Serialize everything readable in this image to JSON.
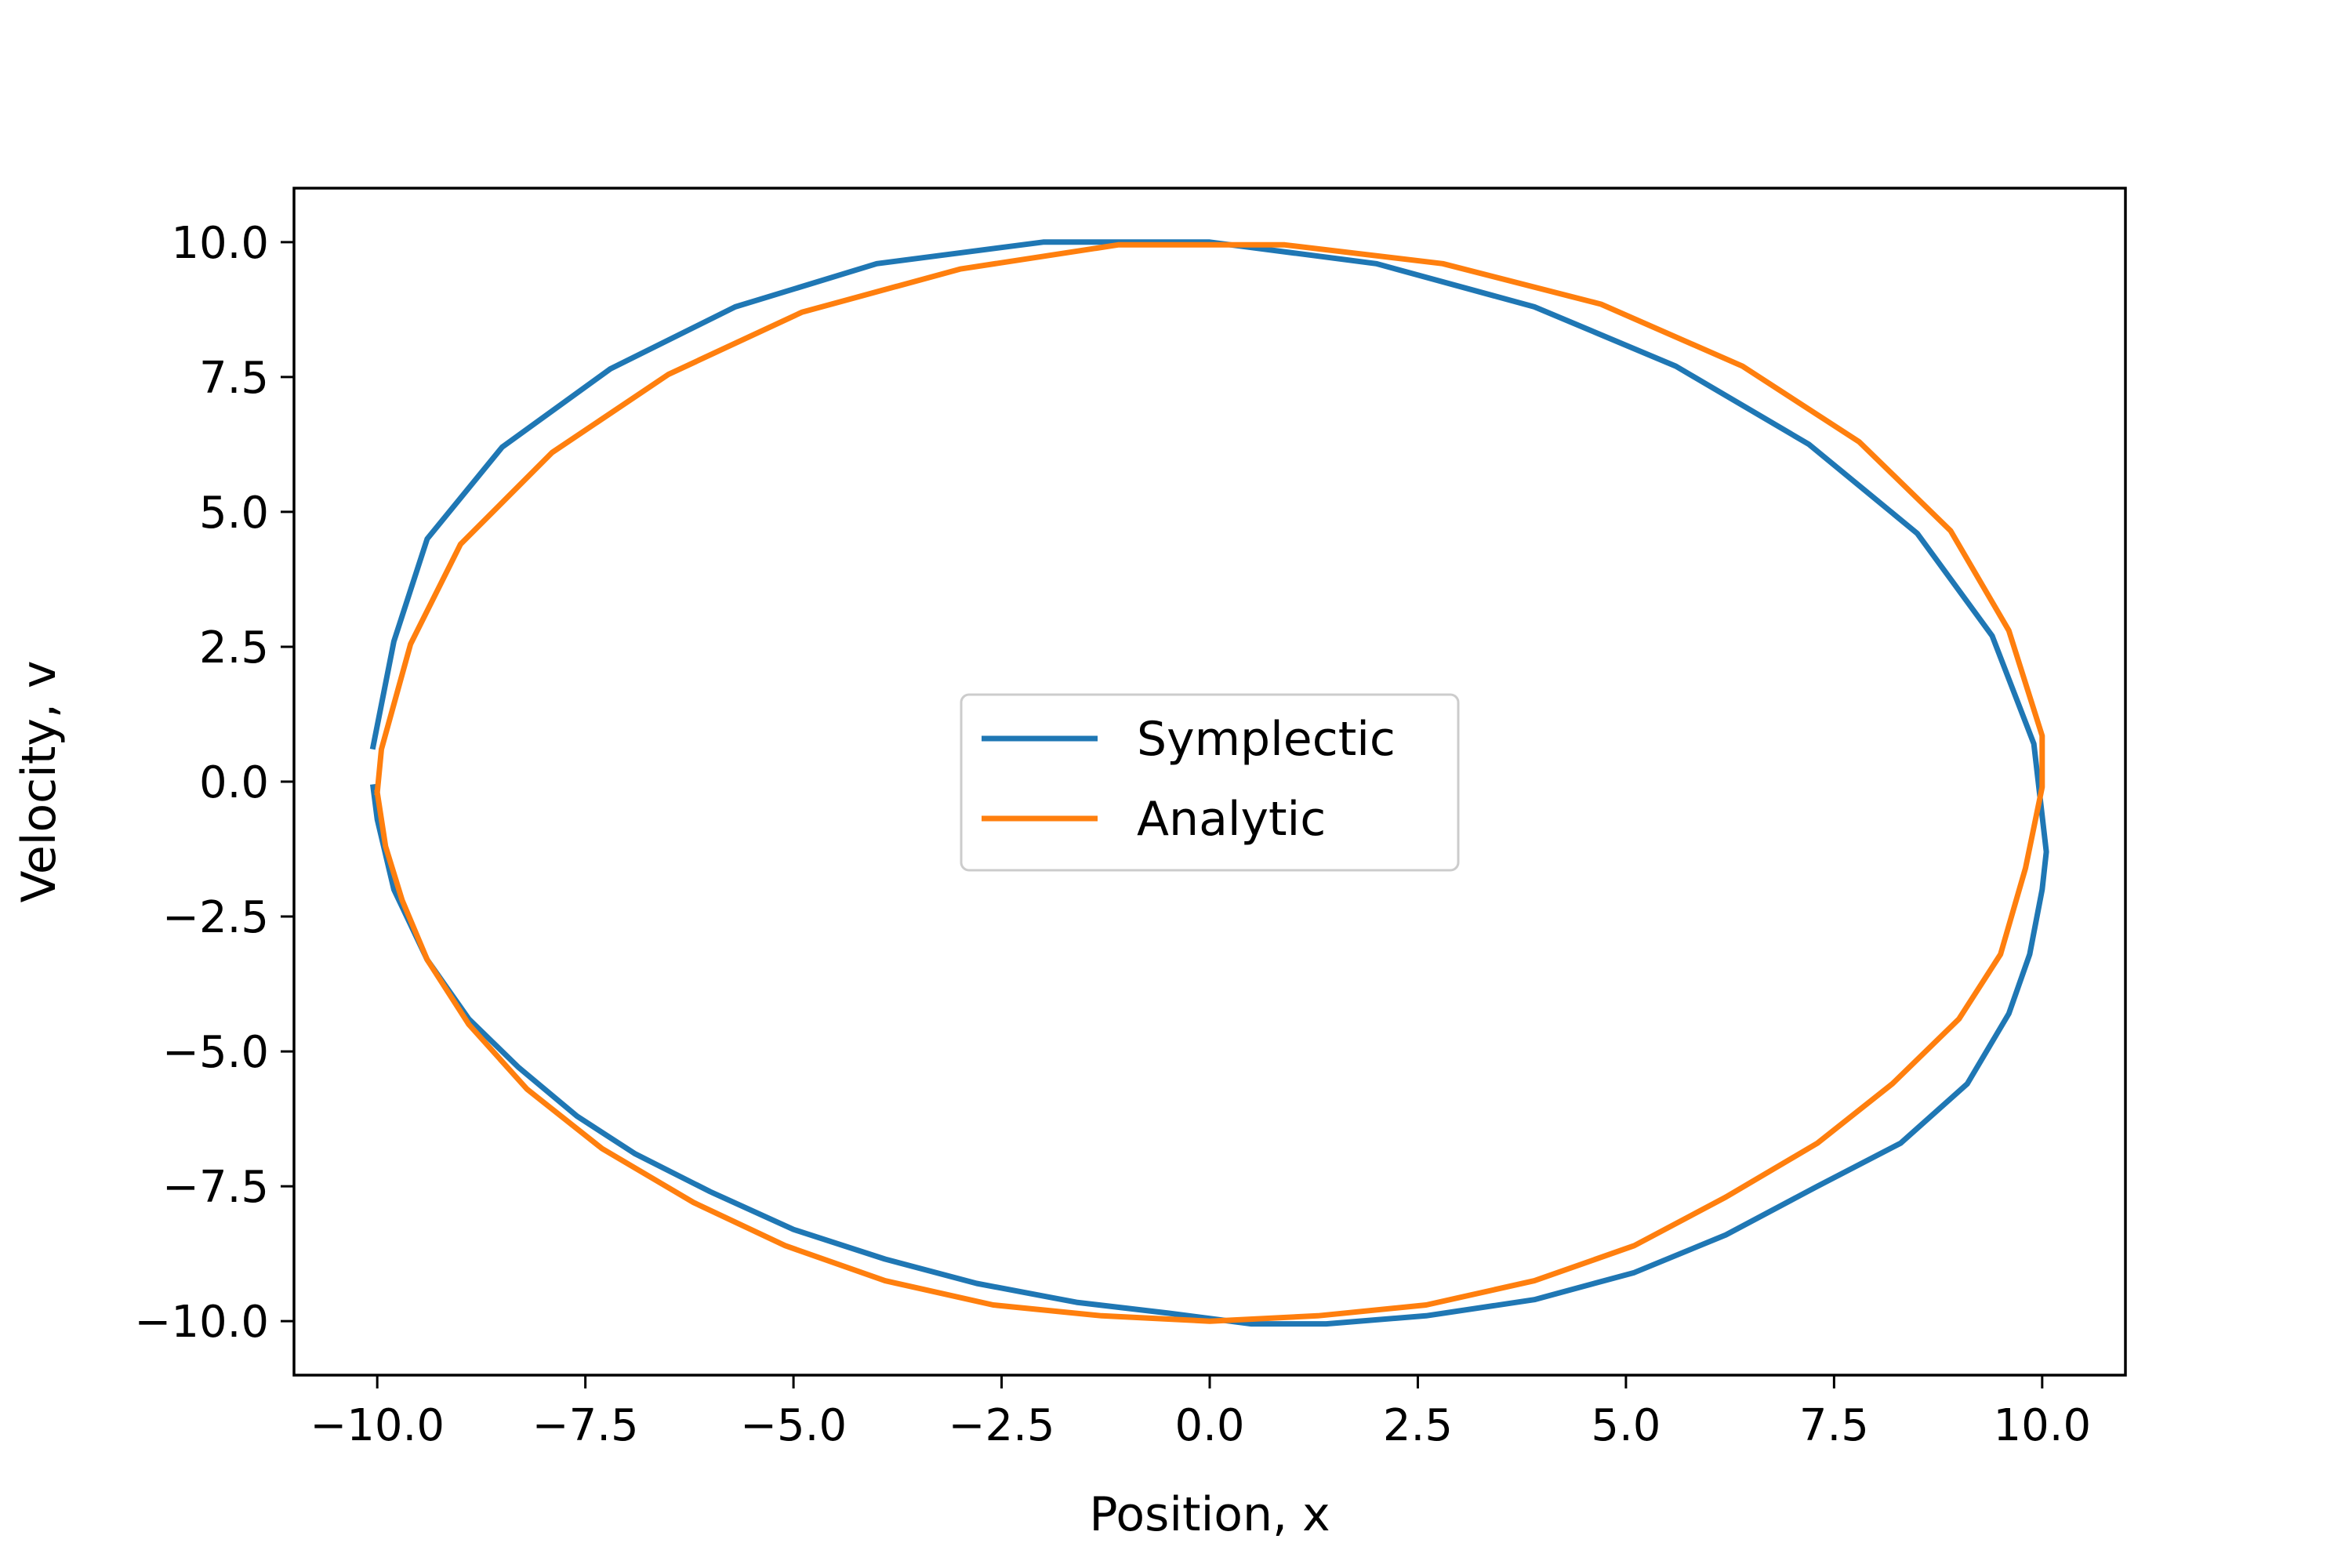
{
  "chart_data": {
    "type": "line",
    "title": "",
    "xlabel": "Position, x",
    "ylabel": "Velocity, v",
    "xlim": [
      -11,
      11
    ],
    "ylim": [
      -11,
      11
    ],
    "grid": false,
    "legend_placement": "center",
    "x_ticks": [
      -10.0,
      -7.5,
      -5.0,
      -2.5,
      0.0,
      2.5,
      5.0,
      7.5,
      10.0
    ],
    "y_ticks": [
      -10.0,
      -7.5,
      -5.0,
      -2.5,
      0.0,
      2.5,
      5.0,
      7.5,
      10.0
    ],
    "x_tick_labels": [
      "−10.0",
      "−7.5",
      "−5.0",
      "−2.5",
      "0.0",
      "2.5",
      "5.0",
      "7.5",
      "10.0"
    ],
    "y_tick_labels": [
      "−10.0",
      "−7.5",
      "−5.0",
      "−2.5",
      "0.0",
      "2.5",
      "5.0",
      "7.5",
      "10.0"
    ],
    "series": [
      {
        "name": "Symplectic",
        "color": "#1f77b4",
        "points": [
          [
            -10.05,
            0.65
          ],
          [
            -9.8,
            2.6
          ],
          [
            -9.4,
            4.5
          ],
          [
            -8.5,
            6.2
          ],
          [
            -7.2,
            7.65
          ],
          [
            -5.7,
            8.8
          ],
          [
            -4.0,
            9.6
          ],
          [
            -2.0,
            10.0
          ],
          [
            0.0,
            10.0
          ],
          [
            2.0,
            9.6
          ],
          [
            3.9,
            8.8
          ],
          [
            5.6,
            7.7
          ],
          [
            7.2,
            6.25
          ],
          [
            8.5,
            4.6
          ],
          [
            9.4,
            2.7
          ],
          [
            9.9,
            0.7
          ],
          [
            10.05,
            -1.3
          ],
          [
            10.0,
            -2.0
          ],
          [
            9.85,
            -3.2
          ],
          [
            9.6,
            -4.3
          ],
          [
            9.1,
            -5.6
          ],
          [
            8.3,
            -6.7
          ],
          [
            7.3,
            -7.5
          ],
          [
            6.2,
            -8.4
          ],
          [
            5.1,
            -9.1
          ],
          [
            3.9,
            -9.6
          ],
          [
            2.6,
            -9.9
          ],
          [
            1.4,
            -10.05
          ],
          [
            0.5,
            -10.05
          ],
          [
            -0.5,
            -9.85
          ],
          [
            -1.6,
            -9.65
          ],
          [
            -2.8,
            -9.3
          ],
          [
            -3.9,
            -8.85
          ],
          [
            -5.0,
            -8.3
          ],
          [
            -6.0,
            -7.6
          ],
          [
            -6.9,
            -6.9
          ],
          [
            -7.6,
            -6.2
          ],
          [
            -8.3,
            -5.3
          ],
          [
            -8.9,
            -4.4
          ],
          [
            -9.4,
            -3.3
          ],
          [
            -9.8,
            -2.0
          ],
          [
            -10.0,
            -0.7
          ],
          [
            -10.05,
            -0.1
          ]
        ]
      },
      {
        "name": "Analytic",
        "color": "#ff7f0e",
        "points": [
          [
            -10.0,
            -0.2
          ],
          [
            -9.95,
            0.6
          ],
          [
            -9.6,
            2.55
          ],
          [
            -9.0,
            4.4
          ],
          [
            -7.9,
            6.1
          ],
          [
            -6.5,
            7.55
          ],
          [
            -4.9,
            8.7
          ],
          [
            -3.0,
            9.5
          ],
          [
            -1.1,
            9.95
          ],
          [
            0.9,
            9.95
          ],
          [
            2.8,
            9.6
          ],
          [
            4.7,
            8.85
          ],
          [
            6.4,
            7.7
          ],
          [
            7.8,
            6.3
          ],
          [
            8.9,
            4.65
          ],
          [
            9.6,
            2.8
          ],
          [
            10.0,
            0.85
          ],
          [
            10.0,
            -0.1
          ],
          [
            9.8,
            -1.6
          ],
          [
            9.5,
            -3.2
          ],
          [
            9.0,
            -4.4
          ],
          [
            8.2,
            -5.6
          ],
          [
            7.3,
            -6.7
          ],
          [
            6.2,
            -7.7
          ],
          [
            5.1,
            -8.6
          ],
          [
            3.9,
            -9.25
          ],
          [
            2.6,
            -9.7
          ],
          [
            1.3,
            -9.9
          ],
          [
            0.0,
            -10.0
          ],
          [
            -1.3,
            -9.9
          ],
          [
            -2.6,
            -9.7
          ],
          [
            -3.9,
            -9.25
          ],
          [
            -5.1,
            -8.6
          ],
          [
            -6.2,
            -7.8
          ],
          [
            -7.3,
            -6.8
          ],
          [
            -8.2,
            -5.7
          ],
          [
            -8.9,
            -4.5
          ],
          [
            -9.4,
            -3.3
          ],
          [
            -9.7,
            -2.2
          ],
          [
            -9.9,
            -1.2
          ],
          [
            -10.0,
            -0.2
          ]
        ]
      }
    ]
  }
}
